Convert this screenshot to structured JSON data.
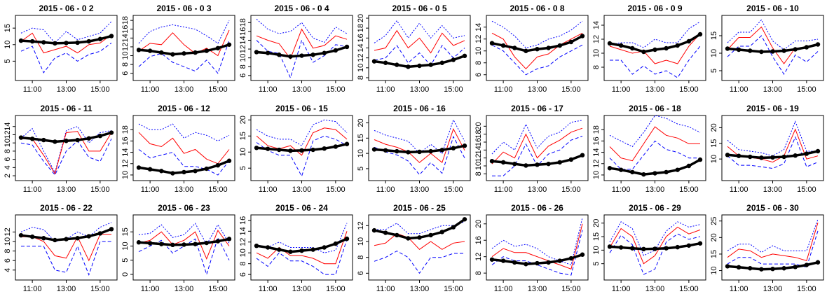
{
  "layout": {
    "rows": 3,
    "cols": 7
  },
  "colors": {
    "mean": "#000000",
    "observed": "#ff0000",
    "bound": "#0000ff"
  },
  "x_tick_labels": [
    "11:00",
    "13:00",
    "15:00"
  ],
  "baseline_series": "mean",
  "chart_data": [
    {
      "type": "line",
      "title": "2015 - 06 - 0 2",
      "ylim": [
        0,
        18
      ],
      "y_ticks": [
        5,
        10,
        15
      ],
      "series": {
        "mean": [
          11.2,
          11,
          10.7,
          10.4,
          10.5,
          10.6,
          11,
          11.7,
          12.6
        ],
        "observed": [
          11,
          13.5,
          7.5,
          8.5,
          9.5,
          7.5,
          10,
          10.5,
          13
        ],
        "upper": [
          13.5,
          15,
          14.5,
          10.5,
          14,
          11.5,
          12.5,
          13.5,
          17
        ],
        "lower": [
          8,
          9.5,
          1.5,
          6,
          7.5,
          5,
          7,
          8,
          10.5
        ]
      }
    },
    {
      "type": "line",
      "title": "2015 - 06 - 0 3",
      "ylim": [
        5,
        18.5
      ],
      "y_ticks": [
        6,
        8,
        10,
        12,
        14,
        16,
        18
      ],
      "series": {
        "mean": [
          11.3,
          11.1,
          10.7,
          10.3,
          10.5,
          10.7,
          11.1,
          11.7,
          12.5
        ],
        "observed": [
          11,
          12.8,
          12.5,
          15.2,
          12.5,
          10.5,
          11.7,
          10,
          15.8
        ],
        "upper": [
          12.8,
          15.5,
          16.5,
          17,
          16.5,
          16,
          14.5,
          12.8,
          18
        ],
        "lower": [
          7.5,
          9.8,
          10.5,
          8.5,
          7.5,
          6.5,
          9,
          6,
          13.5
        ]
      }
    },
    {
      "type": "line",
      "title": "2015 - 06 - 0 4",
      "ylim": [
        5.5,
        19
      ],
      "y_ticks": [
        6,
        8,
        10,
        12,
        14,
        16,
        18
      ],
      "series": {
        "mean": [
          11.3,
          11.1,
          10.7,
          10.3,
          10.5,
          10.7,
          11.1,
          11.7,
          12.5
        ],
        "observed": [
          15,
          14,
          13.2,
          9.8,
          16.5,
          12.2,
          12.8,
          15,
          14.2
        ],
        "upper": [
          18.8,
          16.5,
          15.5,
          16,
          18,
          14.5,
          13.5,
          17,
          15.5
        ],
        "lower": [
          14,
          11.5,
          11,
          5.5,
          14,
          9,
          10.5,
          13,
          12.5
        ]
      }
    },
    {
      "type": "line",
      "title": "2015 - 06 - 0 5",
      "ylim": [
        8,
        20
      ],
      "y_ticks": [
        8,
        10,
        12,
        14,
        16,
        18,
        20
      ],
      "series": {
        "mean": [
          11.3,
          11,
          10.6,
          10.2,
          10.4,
          10.6,
          11,
          11.6,
          12.4
        ],
        "observed": [
          13.5,
          14,
          17.5,
          14,
          16,
          13,
          17,
          14.5,
          15.5
        ],
        "upper": [
          15,
          16.5,
          19.5,
          16,
          19,
          16,
          18.5,
          16,
          16.5
        ],
        "lower": [
          11.5,
          12,
          14.5,
          11,
          13,
          10.5,
          14.5,
          12,
          14
        ]
      }
    },
    {
      "type": "line",
      "title": "2015 - 06 - 0 8",
      "ylim": [
        5.5,
        15.5
      ],
      "y_ticks": [
        6,
        8,
        10,
        12,
        14
      ],
      "series": {
        "mean": [
          11.3,
          10.9,
          10.5,
          10,
          10.3,
          10.5,
          10.9,
          11.5,
          12.5
        ],
        "observed": [
          13,
          12,
          9,
          7,
          9,
          9.5,
          11,
          12,
          13
        ],
        "upper": [
          15,
          14,
          12.5,
          10.5,
          11,
          12,
          12.5,
          13.5,
          15
        ],
        "lower": [
          11,
          10,
          8,
          6,
          7,
          7.5,
          9,
          10,
          11
        ]
      }
    },
    {
      "type": "line",
      "title": "2015 - 06 - 0 9",
      "ylim": [
        6.5,
        15
      ],
      "y_ticks": [
        8,
        10,
        12,
        14
      ],
      "series": {
        "mean": [
          11.4,
          11.1,
          10.7,
          10.2,
          10.5,
          10.7,
          11.1,
          11.7,
          12.7
        ],
        "observed": [
          11,
          10.5,
          10,
          10.3,
          8.5,
          9,
          8.5,
          11,
          12.8
        ],
        "upper": [
          11.2,
          11.5,
          11.5,
          10.8,
          12,
          11.5,
          11.5,
          13.5,
          14.5
        ],
        "lower": [
          9,
          9,
          7,
          8.2,
          7,
          7.5,
          6.5,
          9,
          11
        ]
      }
    },
    {
      "type": "line",
      "title": "2015 - 06 - 10",
      "ylim": [
        3,
        20
      ],
      "y_ticks": [
        5,
        10,
        15
      ],
      "series": {
        "mean": [
          11.3,
          11,
          10.7,
          10.4,
          10.5,
          10.7,
          11.1,
          11.7,
          12.5
        ],
        "observed": [
          11,
          14.5,
          14.5,
          17.5,
          11.5,
          7,
          11.5,
          11.5,
          12.5
        ],
        "upper": [
          13,
          16,
          16,
          19.5,
          13.5,
          11,
          13.5,
          13.5,
          14
        ],
        "lower": [
          9,
          12,
          12,
          15,
          9,
          4,
          9.5,
          7.5,
          10.5
        ]
      }
    },
    {
      "type": "line",
      "title": "2015 - 06 - 11",
      "ylim": [
        1.5,
        16
      ],
      "y_ticks": [
        2,
        4,
        6,
        8,
        10,
        12,
        14
      ],
      "series": {
        "mean": [
          11.3,
          11,
          10.7,
          10.3,
          10.5,
          10.7,
          11.1,
          11.7,
          12.5
        ],
        "observed": [
          11,
          11,
          7,
          2.5,
          12.5,
          12.8,
          8,
          8,
          12.5
        ],
        "upper": [
          11.2,
          13.5,
          8,
          2.8,
          13,
          14,
          10,
          12.5,
          13
        ],
        "lower": [
          10,
          9.5,
          5.5,
          2.2,
          8,
          10.5,
          6.5,
          5.5,
          11
        ]
      }
    },
    {
      "type": "line",
      "title": "2015 - 06 - 12",
      "ylim": [
        9.5,
        20
      ],
      "y_ticks": [
        10,
        12,
        14,
        16,
        18
      ],
      "series": {
        "mean": [
          11.3,
          11,
          10.7,
          10.3,
          10.5,
          10.7,
          11.1,
          11.7,
          12.5
        ],
        "observed": [
          17.5,
          15.5,
          15,
          16.5,
          13.8,
          14.5,
          12.8,
          12,
          14.5
        ],
        "upper": [
          19,
          18,
          18,
          19,
          16.5,
          17.5,
          17,
          16,
          17
        ],
        "lower": [
          14.5,
          13,
          13.5,
          14,
          11.5,
          11.5,
          11,
          10,
          12.5
        ]
      }
    },
    {
      "type": "line",
      "title": "2015 - 06 - 15",
      "ylim": [
        2,
        20.5
      ],
      "y_ticks": [
        5,
        10,
        15,
        20
      ],
      "series": {
        "mean": [
          11.3,
          11,
          10.7,
          10.4,
          10.5,
          10.7,
          11.1,
          11.7,
          12.5
        ],
        "observed": [
          15,
          12,
          11,
          12,
          9,
          16,
          17.5,
          17,
          14
        ],
        "upper": [
          17,
          15,
          14,
          14,
          12,
          18.5,
          20,
          19.5,
          16
        ],
        "lower": [
          13,
          10.5,
          9,
          9,
          2.5,
          13.5,
          15,
          14,
          12
        ]
      }
    },
    {
      "type": "line",
      "title": "2015 - 06 - 16",
      "ylim": [
        2,
        21.5
      ],
      "y_ticks": [
        5,
        10,
        15,
        20
      ],
      "series": {
        "mean": [
          11.3,
          11,
          10.7,
          10.4,
          10.5,
          10.7,
          11.1,
          11.7,
          12.5
        ],
        "observed": [
          14.5,
          13,
          12,
          10.5,
          7,
          10,
          7,
          18,
          11
        ],
        "upper": [
          17.5,
          16,
          15,
          14,
          10,
          13,
          10,
          21,
          14
        ],
        "lower": [
          12,
          10.5,
          9.5,
          7.5,
          3,
          7,
          3.5,
          15.5,
          8.5
        ]
      }
    },
    {
      "type": "line",
      "title": "2015 - 06 - 17",
      "ylim": [
        7,
        22
      ],
      "y_ticks": [
        8,
        10,
        12,
        14,
        16,
        18,
        20
      ],
      "series": {
        "mean": [
          11.2,
          10.9,
          10.5,
          10.1,
          10.3,
          10.5,
          10.9,
          11.6,
          12.7
        ],
        "observed": [
          10.5,
          13.5,
          12,
          18,
          12,
          15,
          16.5,
          18.5,
          19.5
        ],
        "upper": [
          13,
          16,
          14,
          20.5,
          14.5,
          17.5,
          18.5,
          21,
          21.5
        ],
        "lower": [
          7.5,
          7.5,
          10,
          15.5,
          10,
          13,
          14,
          16.5,
          17.5
        ]
      }
    },
    {
      "type": "line",
      "title": "2015 - 06 - 18",
      "ylim": [
        9.5,
        20
      ],
      "y_ticks": [
        10,
        12,
        14,
        16,
        18
      ],
      "series": {
        "mean": [
          11.2,
          10.9,
          10.5,
          10.1,
          10.3,
          10.5,
          10.9,
          11.6,
          12.7
        ],
        "observed": [
          15,
          13,
          12.5,
          15.5,
          18.5,
          17,
          16.5,
          15.5,
          15.5
        ],
        "upper": [
          17,
          16,
          15,
          17.5,
          20.5,
          20,
          19,
          18.5,
          17.5
        ],
        "lower": [
          13,
          11,
          11,
          13.5,
          16,
          14.5,
          14,
          13,
          13
        ]
      }
    },
    {
      "type": "line",
      "title": "2015 - 06 - 19",
      "ylim": [
        4,
        23
      ],
      "y_ticks": [
        10,
        15,
        20
      ],
      "series": {
        "mean": [
          11.3,
          11,
          10.7,
          10.4,
          10.5,
          10.7,
          11.1,
          11.7,
          12.5
        ],
        "observed": [
          14,
          11,
          10.5,
          10,
          9,
          11,
          19.5,
          10,
          11
        ],
        "upper": [
          16,
          13,
          12.5,
          12,
          11,
          13,
          22,
          12.5,
          12.5
        ],
        "lower": [
          11,
          8,
          8,
          7.5,
          7,
          8.5,
          17,
          7.5,
          9
        ]
      }
    },
    {
      "type": "line",
      "title": "2015 - 06 - 22",
      "ylim": [
        2.5,
        15
      ],
      "y_ticks": [
        4,
        6,
        8,
        10,
        12
      ],
      "series": {
        "mean": [
          11.3,
          11,
          10.7,
          10.3,
          10.5,
          10.7,
          11.1,
          11.7,
          12.6
        ],
        "observed": [
          11,
          11,
          10,
          7,
          6.5,
          11,
          6,
          11.5,
          11.5
        ],
        "upper": [
          12,
          13,
          12.5,
          10,
          10.5,
          12,
          11,
          13,
          14
        ],
        "lower": [
          9,
          9,
          9,
          4,
          3.5,
          9,
          3,
          10,
          10
        ]
      }
    },
    {
      "type": "line",
      "title": "2015 - 06 - 23",
      "ylim": [
        -1,
        20
      ],
      "y_ticks": [
        0,
        5,
        10,
        15
      ],
      "series": {
        "mean": [
          11.3,
          11,
          10.7,
          10.4,
          10.5,
          10.7,
          11.1,
          11.7,
          12.5
        ],
        "observed": [
          11,
          12,
          15,
          10.5,
          12,
          15,
          5.5,
          15.5,
          10
        ],
        "upper": [
          14,
          14.5,
          17.5,
          13,
          14,
          18,
          10.5,
          17.5,
          11
        ],
        "lower": [
          8,
          10,
          12,
          7.5,
          10,
          12.5,
          0,
          13,
          5
        ]
      }
    },
    {
      "type": "line",
      "title": "2015 - 06 - 24",
      "ylim": [
        5.5,
        16.5
      ],
      "y_ticks": [
        6,
        8,
        10,
        12,
        14,
        16
      ],
      "series": {
        "mean": [
          11.3,
          11,
          10.6,
          10.2,
          10.4,
          10.6,
          11,
          11.7,
          12.6
        ],
        "observed": [
          10,
          9,
          11,
          9.5,
          9.5,
          9,
          8,
          8,
          14
        ],
        "upper": [
          11.5,
          11,
          12,
          11,
          11,
          11,
          10,
          10.5,
          15.5
        ],
        "lower": [
          9,
          7.5,
          10,
          8.5,
          8.5,
          7.5,
          6,
          6,
          12.5
        ]
      }
    },
    {
      "type": "line",
      "title": "2015 - 06 - 25",
      "ylim": [
        5.5,
        13
      ],
      "y_ticks": [
        6,
        8,
        10,
        12
      ],
      "series": {
        "mean": [
          11.4,
          11.1,
          10.8,
          10.4,
          10.5,
          10.8,
          11.2,
          11.8,
          12.8
        ],
        "observed": [
          9.5,
          9.8,
          11,
          10.5,
          9,
          10,
          9,
          9.8,
          10
        ],
        "upper": [
          11.5,
          11.5,
          12.3,
          11,
          11,
          11.5,
          12,
          12,
          12.5
        ],
        "lower": [
          7.5,
          8,
          8.8,
          8,
          6,
          8,
          8,
          8.5,
          8.5
        ]
      }
    },
    {
      "type": "line",
      "title": "2015 - 06 - 26",
      "ylim": [
        7,
        21.5
      ],
      "y_ticks": [
        8,
        12,
        16,
        20
      ],
      "series": {
        "mean": [
          11.3,
          11,
          10.6,
          10.2,
          10.4,
          10.6,
          11,
          11.6,
          12.5
        ],
        "observed": [
          12,
          14,
          13,
          13,
          12,
          11,
          10,
          9,
          20
        ],
        "upper": [
          14,
          16,
          14.5,
          15,
          14,
          12,
          11,
          10,
          21.5
        ],
        "lower": [
          10,
          12,
          11,
          11,
          10,
          9,
          8,
          7.5,
          18.5
        ]
      }
    },
    {
      "type": "line",
      "title": "2015 - 06 - 29",
      "ylim": [
        0,
        22
      ],
      "y_ticks": [
        5,
        10,
        15,
        20
      ],
      "series": {
        "mean": [
          11.3,
          11,
          10.7,
          10.4,
          10.5,
          10.7,
          11.1,
          11.7,
          12.5
        ],
        "observed": [
          11,
          18,
          15,
          5,
          8,
          15,
          18.5,
          16,
          17.5
        ],
        "upper": [
          13,
          20.5,
          18,
          8,
          10,
          17,
          20.5,
          18.5,
          19.5
        ],
        "lower": [
          9,
          15.5,
          12,
          1,
          3,
          13,
          16,
          14,
          15
        ]
      }
    },
    {
      "type": "line",
      "title": "2015 - 06 - 30",
      "ylim": [
        8,
        26
      ],
      "y_ticks": [
        10,
        15,
        20,
        25
      ],
      "series": {
        "mean": [
          11.3,
          11,
          10.7,
          10.4,
          10.5,
          10.7,
          11.1,
          11.7,
          12.5
        ],
        "observed": [
          14,
          16.5,
          16,
          14,
          15,
          14.5,
          14,
          13,
          24.5
        ],
        "upper": [
          16,
          18,
          18,
          15.5,
          17.5,
          16,
          16,
          16,
          25.5
        ],
        "lower": [
          12,
          14,
          14,
          12,
          12,
          12,
          12,
          11,
          22
        ]
      }
    }
  ]
}
